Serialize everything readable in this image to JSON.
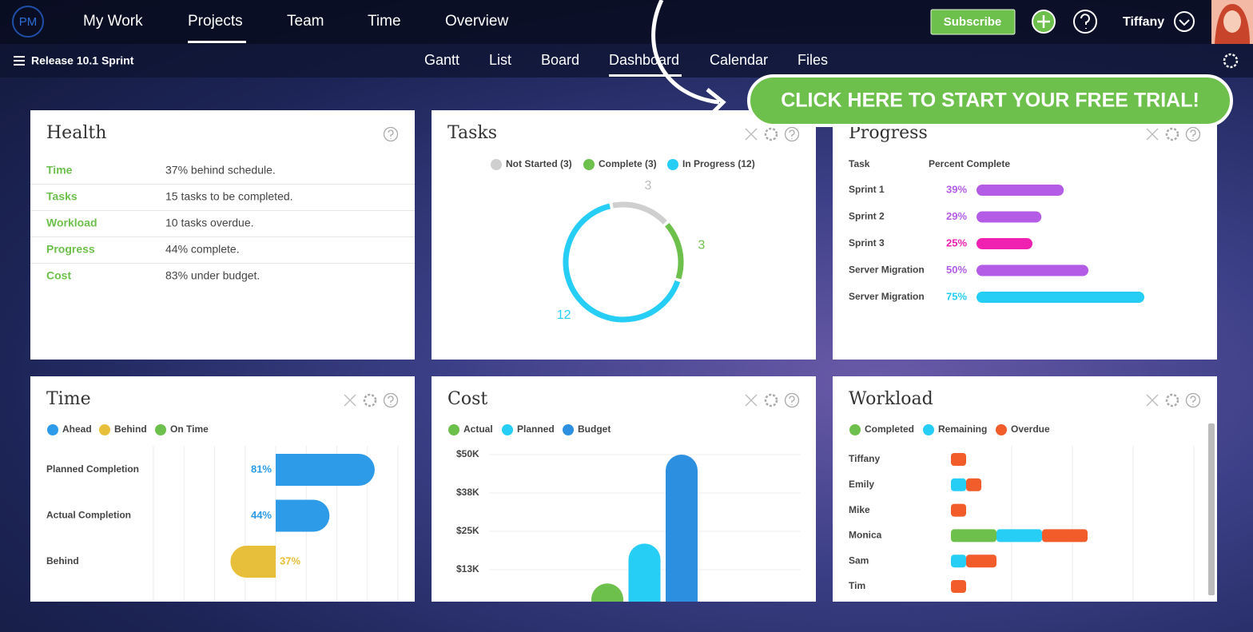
{
  "nav": {
    "logo": "PM",
    "items": [
      "My Work",
      "Projects",
      "Team",
      "Time",
      "Overview"
    ],
    "subscribe": "Subscribe",
    "user": "Tiffany"
  },
  "subnav": {
    "project": "Release 10.1 Sprint",
    "tabs": [
      "Gantt",
      "List",
      "Board",
      "Dashboard",
      "Calendar",
      "Files"
    ]
  },
  "cta": "CLICK HERE TO START YOUR FREE TRIAL!",
  "health": {
    "title": "Health",
    "rows": [
      [
        "Time",
        "37% behind schedule."
      ],
      [
        "Tasks",
        "15 tasks to be completed."
      ],
      [
        "Workload",
        "10 tasks overdue."
      ],
      [
        "Progress",
        "44% complete."
      ],
      [
        "Cost",
        "83% under budget."
      ]
    ]
  },
  "tasks": {
    "title": "Tasks",
    "type": "donut",
    "legend": [
      "Not Started (3)",
      "Complete (3)",
      "In Progress (12)"
    ],
    "values": [
      3,
      3,
      12
    ],
    "colors": [
      "#cfcfcf",
      "#6dc04b",
      "#26cdf5"
    ]
  },
  "progress": {
    "title": "Progress",
    "columns": [
      "Task",
      "Percent Complete"
    ],
    "xlim": [
      0,
      100
    ],
    "rows": [
      {
        "task": "Sprint 1",
        "value": 39,
        "label": "39%",
        "color": "#b45ce6"
      },
      {
        "task": "Sprint 2",
        "value": 29,
        "label": "29%",
        "color": "#b45ce6"
      },
      {
        "task": "Sprint 3",
        "value": 25,
        "label": "25%",
        "color": "#f020b0"
      },
      {
        "task": "Server Migration",
        "value": 50,
        "label": "50%",
        "color": "#b45ce6"
      },
      {
        "task": "Server Migration",
        "value": 75,
        "label": "75%",
        "color": "#26cdf5"
      }
    ]
  },
  "time": {
    "title": "Time",
    "type": "bar",
    "legend": [
      "Ahead",
      "Behind",
      "On Time"
    ],
    "legend_colors": [
      "#2d9be8",
      "#e8bf3a",
      "#6dc04b"
    ],
    "categories": [
      "Planned Completion",
      "Actual Completion",
      "Behind"
    ],
    "values": [
      81,
      44,
      -37
    ],
    "value_labels": [
      "81%",
      "44%",
      "37%"
    ],
    "colors": [
      "#2d9be8",
      "#2d9be8",
      "#e8bf3a"
    ],
    "xlim": [
      -100,
      100
    ]
  },
  "cost": {
    "title": "Cost",
    "type": "bar",
    "legend": [
      "Actual",
      "Planned",
      "Budget"
    ],
    "colors": [
      "#6dc04b",
      "#26cdf5",
      "#2d8fe0"
    ],
    "values": [
      8000,
      21000,
      50000
    ],
    "ylim": [
      0,
      50000
    ],
    "yticks": [
      {
        "value": 50000,
        "label": "$50K"
      },
      {
        "value": 37500,
        "label": "$38K"
      },
      {
        "value": 25000,
        "label": "$25K"
      },
      {
        "value": 12500,
        "label": "$13K"
      }
    ]
  },
  "workload": {
    "title": "Workload",
    "type": "stacked-bar",
    "categories": [
      "Tiffany",
      "Emily",
      "Mike",
      "Monica",
      "Sam",
      "Tim"
    ],
    "xlim": [
      0,
      16
    ],
    "series": [
      {
        "name": "Completed",
        "color": "#6dc04b",
        "values": [
          0,
          0,
          0,
          3,
          0,
          0
        ]
      },
      {
        "name": "Remaining",
        "color": "#26cdf5",
        "values": [
          0,
          1,
          0,
          3,
          1,
          0
        ]
      },
      {
        "name": "Overdue",
        "color": "#f25c2a",
        "values": [
          1,
          1,
          1,
          3,
          2,
          1
        ]
      }
    ]
  }
}
